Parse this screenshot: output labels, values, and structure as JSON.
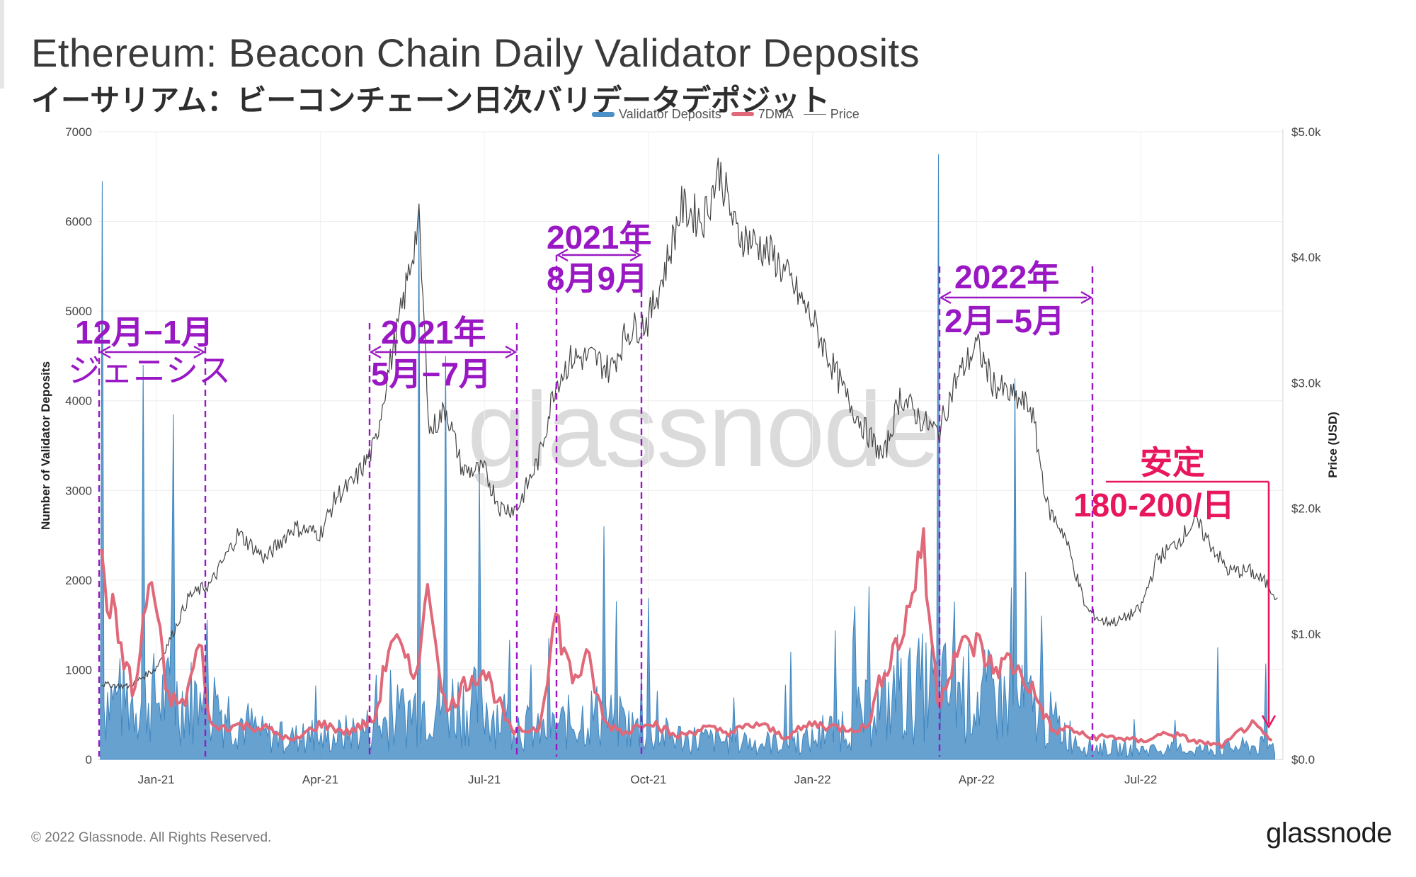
{
  "title": "Ethereum: Beacon Chain Daily Validator Deposits",
  "subtitle": "イーサリアム：ビーコンチェーン日次バリデータデポジット",
  "legend": {
    "deposits": "Validator Deposits",
    "dma": "7DMA",
    "price": "Price"
  },
  "watermark": "glassnode",
  "footer": "© 2022 Glassnode. All Rights Reserved.",
  "logo": "glassnode",
  "colors": {
    "deposits": "#4b91c8",
    "dma": "#e06878",
    "price": "#444444",
    "annotation": "#9a17c4",
    "highlight": "#e8175d"
  },
  "annotations": {
    "genesis_line1": "12月−1月",
    "genesis_line2": "ジェニシス",
    "may_jul_line1": "2021年",
    "may_jul_line2": "5月−7月",
    "aug_sep_line1": "2021年",
    "aug_sep_line2": "8月9月",
    "feb_may_line1": "2022年",
    "feb_may_line2": "2月−5月",
    "stable_line1": "安定",
    "stable_line2": "180-200/日"
  },
  "chart_data": {
    "type": "bar",
    "title": "Ethereum: Beacon Chain Daily Validator Deposits",
    "ylabel": "Number of Validator Deposits",
    "y2label": "Price (USD)",
    "ylim": [
      0,
      7000
    ],
    "y2lim": [
      0,
      5000
    ],
    "y_ticks": [
      "0",
      "1000",
      "2000",
      "3000",
      "4000",
      "5000",
      "6000",
      "7000"
    ],
    "y2_ticks": [
      "$0.0",
      "$1.0k",
      "$2.0k",
      "$3.0k",
      "$4.0k",
      "$5.0k"
    ],
    "x_ticks": [
      "Jan-21",
      "Apr-21",
      "Jul-21",
      "Oct-21",
      "Jan-22",
      "Apr-22",
      "Jul-22"
    ],
    "x_range_months": [
      -1.07,
      20.6
    ],
    "x_tick_months": [
      0,
      3,
      6,
      9,
      12,
      15,
      18
    ],
    "series": [
      {
        "name": "Validator Deposits",
        "kind": "bar",
        "note": "monthly approximate daily level; x in months since Jan-21",
        "x": [
          -1,
          0,
          1,
          2,
          3,
          4,
          5,
          6,
          7,
          8,
          9,
          10,
          11,
          12,
          13,
          14,
          15,
          16,
          17,
          18,
          19,
          20
        ],
        "values": [
          900,
          950,
          900,
          350,
          300,
          500,
          900,
          800,
          400,
          700,
          400,
          300,
          250,
          300,
          700,
          1100,
          1000,
          800,
          200,
          150,
          150,
          200
        ],
        "peaks": [
          6450,
          4400,
          3850,
          6200,
          4500,
          3200,
          2600,
          1800,
          1200,
          6750,
          4250,
          1250,
          1070
        ]
      },
      {
        "name": "7DMA",
        "kind": "line",
        "x": [
          -1,
          -0.7,
          -0.4,
          -0.1,
          0.2,
          0.5,
          0.8,
          1.0,
          1.5,
          2.0,
          2.5,
          3.0,
          3.5,
          4.0,
          4.3,
          4.7,
          5.0,
          5.3,
          5.7,
          6.0,
          6.5,
          7.0,
          7.3,
          7.6,
          7.9,
          8.2,
          8.6,
          9.0,
          9.5,
          10.0,
          10.5,
          11.0,
          11.5,
          12.0,
          12.5,
          13.0,
          13.3,
          13.7,
          14.0,
          14.3,
          14.6,
          15.0,
          15.3,
          15.6,
          16.0,
          16.4,
          16.7,
          17.0,
          17.5,
          18.0,
          18.5,
          19.0,
          19.5,
          20.0,
          20.4
        ],
        "values": [
          2100,
          1400,
          700,
          2100,
          700,
          600,
          1300,
          350,
          380,
          350,
          200,
          400,
          300,
          450,
          1400,
          900,
          1900,
          500,
          900,
          1000,
          300,
          350,
          1600,
          900,
          1100,
          400,
          300,
          450,
          250,
          350,
          300,
          400,
          250,
          400,
          350,
          350,
          1000,
          1500,
          2450,
          600,
          1200,
          1300,
          1000,
          1100,
          800,
          300,
          350,
          250,
          250,
          200,
          300,
          200,
          150,
          400,
          200
        ]
      },
      {
        "name": "Price",
        "kind": "line",
        "axis": "right",
        "x": [
          -1,
          -0.5,
          0,
          0.3,
          0.6,
          1,
          1.5,
          2,
          2.5,
          3,
          3.3,
          3.6,
          4,
          4.2,
          4.5,
          4.8,
          5,
          5.3,
          5.6,
          6,
          6.3,
          6.6,
          7,
          7.3,
          7.6,
          8,
          8.3,
          8.6,
          9,
          9.3,
          9.6,
          10,
          10.3,
          10.6,
          11,
          11.3,
          11.6,
          12,
          12.3,
          12.6,
          13,
          13.3,
          13.6,
          14,
          14.3,
          14.6,
          15,
          15.3,
          15.6,
          16,
          16.3,
          16.6,
          17,
          17.3,
          17.6,
          18,
          18.3,
          18.6,
          19,
          19.3,
          19.6,
          20,
          20.3,
          20.5
        ],
        "values": [
          600,
          580,
          730,
          1000,
          1300,
          1400,
          1800,
          1600,
          1850,
          1800,
          2100,
          2200,
          2500,
          3000,
          3600,
          4300,
          2600,
          2800,
          2300,
          2300,
          2000,
          2000,
          2400,
          3000,
          3200,
          3200,
          3100,
          3400,
          3500,
          3900,
          4400,
          4300,
          4700,
          4200,
          4100,
          4000,
          3800,
          3500,
          3200,
          2900,
          2600,
          2400,
          2900,
          2700,
          2600,
          3000,
          3300,
          3000,
          2900,
          2800,
          2000,
          1800,
          1200,
          1100,
          1100,
          1200,
          1600,
          1700,
          1900,
          1700,
          1500,
          1500,
          1400,
          1300
        ]
      }
    ],
    "axis_labels": {
      "x": [],
      "y": "Number of Validator Deposits",
      "y2": "Price (USD)"
    }
  }
}
